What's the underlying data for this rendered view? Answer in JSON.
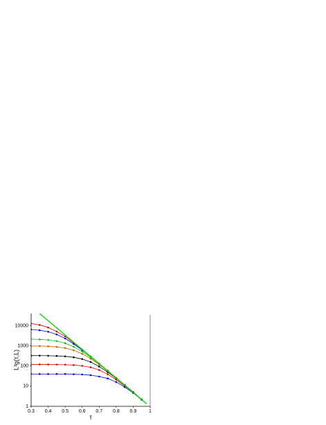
{
  "chart_data": {
    "type": "line",
    "xlabel": "τ",
    "ylabel": "L³g(τ,L)",
    "log_y": true,
    "xlim": [
      0.3,
      1
    ],
    "xticks": [
      0.3,
      0.4,
      0.5,
      0.6,
      0.7,
      0.8,
      0.9,
      1
    ],
    "ylim": [
      1,
      40000
    ],
    "yticks": [
      1,
      10,
      100,
      1000,
      10000
    ],
    "x": [
      0.3,
      0.35,
      0.4,
      0.45,
      0.5,
      0.55,
      0.6,
      0.65,
      0.7,
      0.75,
      0.8,
      0.85,
      0.9,
      0.95
    ],
    "series": [
      {
        "color": "#e00000",
        "values": [
          12800,
          10900,
          8140,
          5110,
          2930,
          1370,
          646,
          296,
          132,
          59,
          26,
          11.5,
          5.1,
          2.2
        ]
      },
      {
        "color": "#0000dd",
        "values": [
          6500,
          5950,
          5010,
          3690,
          2320,
          1240,
          617,
          289,
          130,
          58,
          26,
          11.5,
          5.1,
          2.2
        ]
      },
      {
        "color": "#00cc00",
        "values": [
          2150,
          2090,
          1960,
          1720,
          1350,
          897,
          515,
          265,
          125,
          57,
          26,
          11.4,
          5.1,
          2.2
        ]
      },
      {
        "color": "#c86400",
        "values": [
          989,
          976,
          947,
          886,
          776,
          602,
          403,
          232,
          117,
          56,
          26,
          11.4,
          5.1,
          2.2
        ]
      },
      {
        "color": "#000000",
        "values": [
          329,
          327,
          324,
          316,
          301,
          270,
          222,
          158,
          94,
          50,
          24,
          11,
          5,
          2.2
        ]
      },
      {
        "color": "#e00000",
        "values": [
          120,
          120,
          119,
          118,
          116,
          111,
          102,
          86,
          63,
          39,
          21,
          10,
          5,
          2.2
        ]
      },
      {
        "color": "#0000dd",
        "values": [
          40,
          40,
          40,
          40,
          40,
          39,
          38,
          35,
          30,
          24,
          16,
          9,
          4.6,
          2.1
        ]
      }
    ],
    "fit_line": {
      "color": "#00dd00",
      "x": [
        0.35,
        0.98
      ],
      "values": [
        40000,
        1.3
      ]
    }
  }
}
